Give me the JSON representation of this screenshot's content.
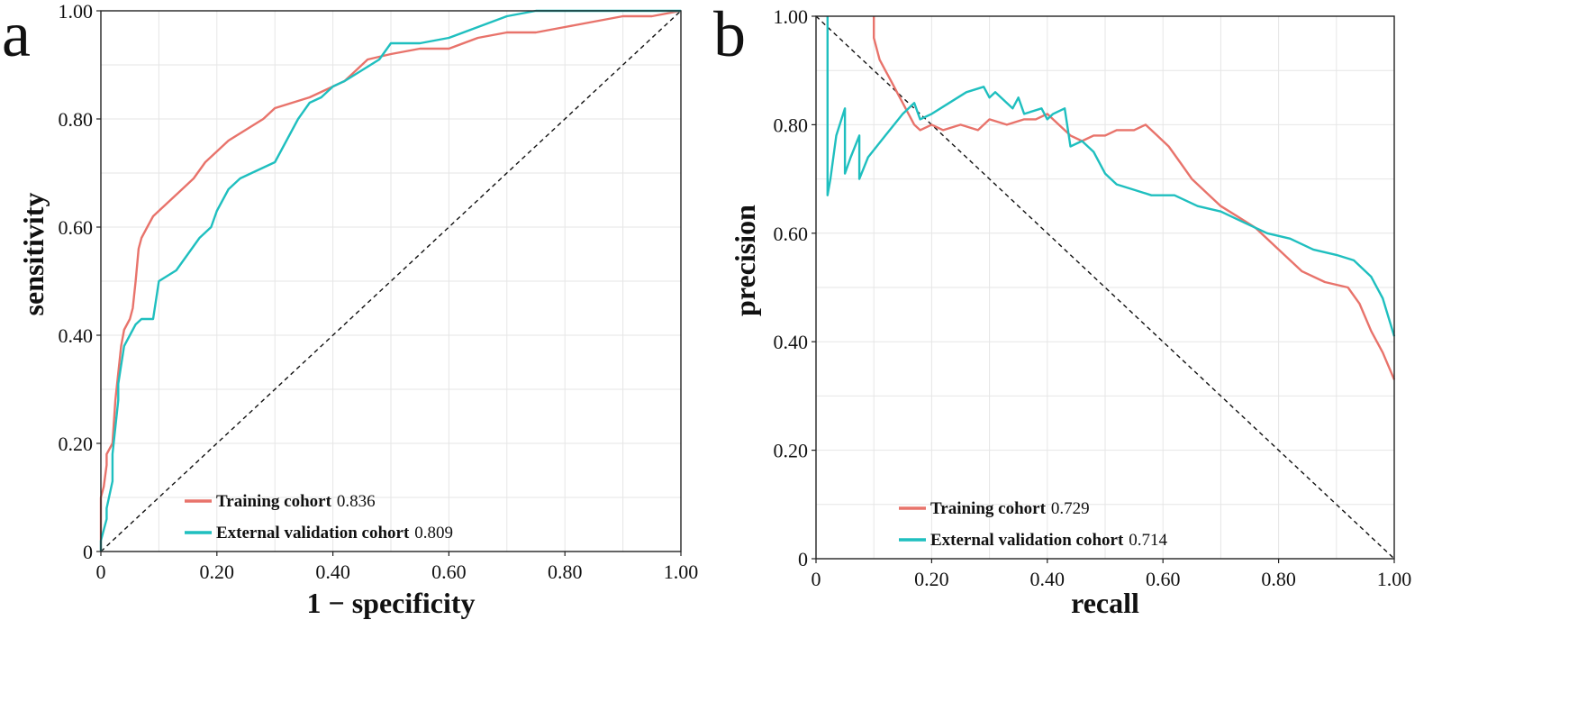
{
  "chart_data": [
    {
      "type": "line",
      "panel": "a",
      "title": "",
      "xlabel": "1 − specificity",
      "ylabel": "sensitivity",
      "xlim": [
        0,
        1
      ],
      "ylim": [
        0,
        1
      ],
      "xticks": [
        "0",
        "0.20",
        "0.40",
        "0.60",
        "0.80",
        "1.00"
      ],
      "yticks": [
        "0",
        "0.20",
        "0.40",
        "0.60",
        "0.80",
        "1.00"
      ],
      "grid": true,
      "legend_position": "bottom-center",
      "reference_line": "diagonal-up",
      "series": [
        {
          "name": "Training cohort",
          "auc": "0.836",
          "color": "#e8736b",
          "x": [
            0,
            0,
            0.005,
            0.01,
            0.01,
            0.02,
            0.025,
            0.03,
            0.035,
            0.04,
            0.045,
            0.05,
            0.055,
            0.06,
            0.065,
            0.07,
            0.08,
            0.09,
            0.1,
            0.12,
            0.14,
            0.16,
            0.18,
            0.2,
            0.22,
            0.25,
            0.28,
            0.3,
            0.33,
            0.36,
            0.38,
            0.4,
            0.42,
            0.44,
            0.46,
            0.5,
            0.55,
            0.6,
            0.65,
            0.7,
            0.75,
            0.8,
            0.85,
            0.9,
            0.95,
            1.0
          ],
          "y": [
            0,
            0.1,
            0.12,
            0.16,
            0.18,
            0.2,
            0.28,
            0.33,
            0.38,
            0.41,
            0.42,
            0.43,
            0.45,
            0.5,
            0.56,
            0.58,
            0.6,
            0.62,
            0.63,
            0.65,
            0.67,
            0.69,
            0.72,
            0.74,
            0.76,
            0.78,
            0.8,
            0.82,
            0.83,
            0.84,
            0.85,
            0.86,
            0.87,
            0.89,
            0.91,
            0.92,
            0.93,
            0.93,
            0.95,
            0.96,
            0.96,
            0.97,
            0.98,
            0.99,
            0.99,
            1.0
          ]
        },
        {
          "name": "External validation cohort",
          "auc": "0.809",
          "color": "#1fbfbf",
          "x": [
            0,
            0,
            0.01,
            0.01,
            0.02,
            0.02,
            0.03,
            0.03,
            0.04,
            0.05,
            0.06,
            0.07,
            0.09,
            0.1,
            0.13,
            0.15,
            0.17,
            0.19,
            0.2,
            0.22,
            0.24,
            0.26,
            0.3,
            0.32,
            0.34,
            0.36,
            0.38,
            0.4,
            0.42,
            0.45,
            0.48,
            0.5,
            0.55,
            0.6,
            0.65,
            0.7,
            0.75,
            0.8,
            0.9,
            1.0
          ],
          "y": [
            0,
            0.02,
            0.06,
            0.08,
            0.13,
            0.18,
            0.28,
            0.31,
            0.38,
            0.4,
            0.42,
            0.43,
            0.43,
            0.5,
            0.52,
            0.55,
            0.58,
            0.6,
            0.63,
            0.67,
            0.69,
            0.7,
            0.72,
            0.76,
            0.8,
            0.83,
            0.84,
            0.86,
            0.87,
            0.89,
            0.91,
            0.94,
            0.94,
            0.95,
            0.97,
            0.99,
            1.0,
            1.0,
            1.0,
            1.0
          ]
        }
      ]
    },
    {
      "type": "line",
      "panel": "b",
      "title": "",
      "xlabel": "recall",
      "ylabel": "precision",
      "xlim": [
        0,
        1
      ],
      "ylim": [
        0,
        1
      ],
      "xticks": [
        "0",
        "0.20",
        "0.40",
        "0.60",
        "0.80",
        "1.00"
      ],
      "yticks": [
        "0",
        "0.20",
        "0.40",
        "0.60",
        "0.80",
        "1.00"
      ],
      "grid": true,
      "legend_position": "bottom-center",
      "reference_line": "diagonal-down",
      "series": [
        {
          "name": "Training cohort",
          "auc": "0.729",
          "color": "#e8736b",
          "x": [
            0.1,
            0.1,
            0.11,
            0.12,
            0.13,
            0.14,
            0.15,
            0.16,
            0.17,
            0.18,
            0.2,
            0.22,
            0.25,
            0.28,
            0.3,
            0.33,
            0.36,
            0.38,
            0.4,
            0.42,
            0.44,
            0.46,
            0.48,
            0.5,
            0.52,
            0.55,
            0.57,
            0.59,
            0.61,
            0.63,
            0.65,
            0.68,
            0.7,
            0.73,
            0.76,
            0.8,
            0.84,
            0.88,
            0.92,
            0.94,
            0.96,
            0.98,
            1.0
          ],
          "y": [
            1.0,
            0.96,
            0.92,
            0.9,
            0.88,
            0.86,
            0.84,
            0.82,
            0.8,
            0.79,
            0.8,
            0.79,
            0.8,
            0.79,
            0.81,
            0.8,
            0.81,
            0.81,
            0.82,
            0.8,
            0.78,
            0.77,
            0.78,
            0.78,
            0.79,
            0.79,
            0.8,
            0.78,
            0.76,
            0.73,
            0.7,
            0.67,
            0.65,
            0.63,
            0.61,
            0.57,
            0.53,
            0.51,
            0.5,
            0.47,
            0.42,
            0.38,
            0.33
          ]
        },
        {
          "name": "External validation cohort",
          "auc": "0.714",
          "color": "#1fbfbf",
          "x": [
            0.02,
            0.02,
            0.02,
            0.025,
            0.035,
            0.05,
            0.05,
            0.06,
            0.075,
            0.075,
            0.09,
            0.12,
            0.15,
            0.17,
            0.18,
            0.2,
            0.23,
            0.26,
            0.29,
            0.3,
            0.31,
            0.34,
            0.35,
            0.36,
            0.39,
            0.4,
            0.41,
            0.43,
            0.44,
            0.46,
            0.48,
            0.5,
            0.52,
            0.55,
            0.58,
            0.62,
            0.66,
            0.7,
            0.74,
            0.78,
            0.82,
            0.86,
            0.9,
            0.93,
            0.96,
            0.98,
            1.0
          ],
          "y": [
            1.0,
            0.9,
            0.67,
            0.7,
            0.78,
            0.83,
            0.71,
            0.74,
            0.78,
            0.7,
            0.74,
            0.78,
            0.82,
            0.84,
            0.81,
            0.82,
            0.84,
            0.86,
            0.87,
            0.85,
            0.86,
            0.83,
            0.85,
            0.82,
            0.83,
            0.81,
            0.82,
            0.83,
            0.76,
            0.77,
            0.75,
            0.71,
            0.69,
            0.68,
            0.67,
            0.67,
            0.65,
            0.64,
            0.62,
            0.6,
            0.59,
            0.57,
            0.56,
            0.55,
            0.52,
            0.48,
            0.41
          ]
        }
      ]
    }
  ]
}
